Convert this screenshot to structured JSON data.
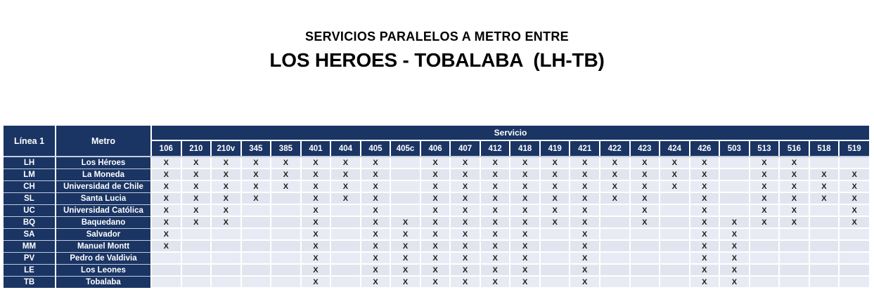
{
  "title": {
    "line1": "SERVICIOS PARALELOS A METRO ENTRE",
    "line2": "LOS HEROES - TOBALABA  (LH-TB)"
  },
  "table": {
    "corner_headers": {
      "linea1": "Línea 1",
      "metro": "Metro"
    },
    "service_group_header": "Servicio",
    "service_columns": [
      "106",
      "210",
      "210v",
      "345",
      "385",
      "401",
      "404",
      "405",
      "405c",
      "406",
      "407",
      "412",
      "418",
      "419",
      "421",
      "422",
      "423",
      "424",
      "426",
      "503",
      "513",
      "516",
      "518",
      "519"
    ],
    "rows": [
      {
        "code": "LH",
        "station": "Los Héroes",
        "marks": [
          "X",
          "X",
          "X",
          "X",
          "X",
          "X",
          "X",
          "X",
          "",
          "X",
          "X",
          "X",
          "X",
          "X",
          "X",
          "X",
          "X",
          "X",
          "X",
          "",
          "X",
          "X",
          "",
          ""
        ]
      },
      {
        "code": "LM",
        "station": "La Moneda",
        "marks": [
          "X",
          "X",
          "X",
          "X",
          "X",
          "X",
          "X",
          "X",
          "",
          "X",
          "X",
          "X",
          "X",
          "X",
          "X",
          "X",
          "X",
          "X",
          "X",
          "",
          "X",
          "X",
          "X",
          "X"
        ]
      },
      {
        "code": "CH",
        "station": "Universidad de Chile",
        "marks": [
          "X",
          "X",
          "X",
          "X",
          "X",
          "X",
          "X",
          "X",
          "",
          "X",
          "X",
          "X",
          "X",
          "X",
          "X",
          "X",
          "X",
          "X",
          "X",
          "",
          "X",
          "X",
          "X",
          "X"
        ]
      },
      {
        "code": "SL",
        "station": "Santa Lucia",
        "marks": [
          "X",
          "X",
          "X",
          "X",
          "",
          "X",
          "X",
          "X",
          "",
          "X",
          "X",
          "X",
          "X",
          "X",
          "X",
          "X",
          "X",
          "",
          "X",
          "",
          "X",
          "X",
          "X",
          "X"
        ]
      },
      {
        "code": "UC",
        "station": "Universidad Católica",
        "marks": [
          "X",
          "X",
          "X",
          "",
          "",
          "X",
          "",
          "X",
          "",
          "X",
          "X",
          "X",
          "X",
          "X",
          "X",
          "",
          "X",
          "",
          "X",
          "",
          "X",
          "X",
          "",
          "X"
        ]
      },
      {
        "code": "BQ",
        "station": "Baquedano",
        "marks": [
          "X",
          "X",
          "X",
          "",
          "",
          "X",
          "",
          "X",
          "X",
          "X",
          "X",
          "X",
          "X",
          "X",
          "X",
          "",
          "X",
          "",
          "X",
          "X",
          "X",
          "X",
          "",
          "X"
        ]
      },
      {
        "code": "SA",
        "station": "Salvador",
        "marks": [
          "X",
          "",
          "",
          "",
          "",
          "X",
          "",
          "X",
          "X",
          "X",
          "X",
          "X",
          "X",
          "",
          "X",
          "",
          "",
          "",
          "X",
          "X",
          "",
          "",
          "",
          ""
        ]
      },
      {
        "code": "MM",
        "station": "Manuel Montt",
        "marks": [
          "X",
          "",
          "",
          "",
          "",
          "X",
          "",
          "X",
          "X",
          "X",
          "X",
          "X",
          "X",
          "",
          "X",
          "",
          "",
          "",
          "X",
          "X",
          "",
          "",
          "",
          ""
        ]
      },
      {
        "code": "PV",
        "station": "Pedro de Valdivia",
        "marks": [
          "",
          "",
          "",
          "",
          "",
          "X",
          "",
          "X",
          "X",
          "X",
          "X",
          "X",
          "X",
          "",
          "X",
          "",
          "",
          "",
          "X",
          "X",
          "",
          "",
          "",
          ""
        ]
      },
      {
        "code": "LE",
        "station": "Los Leones",
        "marks": [
          "",
          "",
          "",
          "",
          "",
          "X",
          "",
          "X",
          "X",
          "X",
          "X",
          "X",
          "X",
          "",
          "X",
          "",
          "",
          "",
          "X",
          "X",
          "",
          "",
          "",
          ""
        ]
      },
      {
        "code": "TB",
        "station": "Tobalaba",
        "marks": [
          "",
          "",
          "",
          "",
          "",
          "X",
          "",
          "X",
          "X",
          "X",
          "X",
          "X",
          "X",
          "",
          "X",
          "",
          "",
          "",
          "X",
          "X",
          "",
          "",
          "",
          ""
        ]
      }
    ],
    "left_aligned_marks": [
      [
        4,
        21
      ],
      [
        4,
        23
      ],
      [
        5,
        21
      ],
      [
        5,
        23
      ]
    ]
  },
  "colors": {
    "header_navy": "#1a3564",
    "cell_fill": "#e9ebf4",
    "cell_fill_alt": "#e2e5ef",
    "mark_color": "#1c1c1c"
  }
}
